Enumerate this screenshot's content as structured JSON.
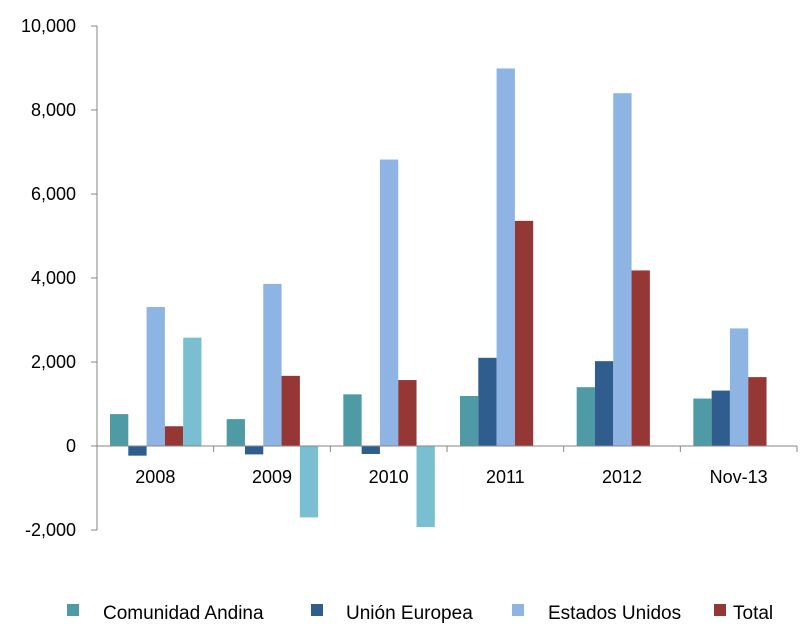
{
  "chart_data": {
    "type": "bar",
    "categories": [
      "2008",
      "2009",
      "2010",
      "2011",
      "2012",
      "Nov-13"
    ],
    "series": [
      {
        "name": "Comunidad Andina",
        "color": "#4E9BA6",
        "values": [
          760,
          640,
          1230,
          1190,
          1400,
          1130
        ]
      },
      {
        "name": "Unión Europea",
        "color": "#2F5D8E",
        "values": [
          -230,
          -200,
          -190,
          2100,
          2020,
          1320
        ]
      },
      {
        "name": "Estados Unidos",
        "color": "#8EB4E3",
        "values": [
          3310,
          3860,
          6820,
          8990,
          8400,
          2800
        ]
      },
      {
        "name": "Total",
        "color": "#953735",
        "values": [
          470,
          1670,
          1570,
          5360,
          4180,
          1640
        ]
      },
      {
        "name": "",
        "color": "#79BFD1",
        "values": [
          2580,
          -1700,
          -1930,
          null,
          null,
          null
        ]
      }
    ],
    "yticks": [
      "10,000",
      "8,000",
      "6,000",
      "4,000",
      "2,000",
      "0",
      "-2,000"
    ],
    "ylim": [
      -2000,
      10000
    ],
    "grid": false,
    "legend_position": "bottom"
  }
}
